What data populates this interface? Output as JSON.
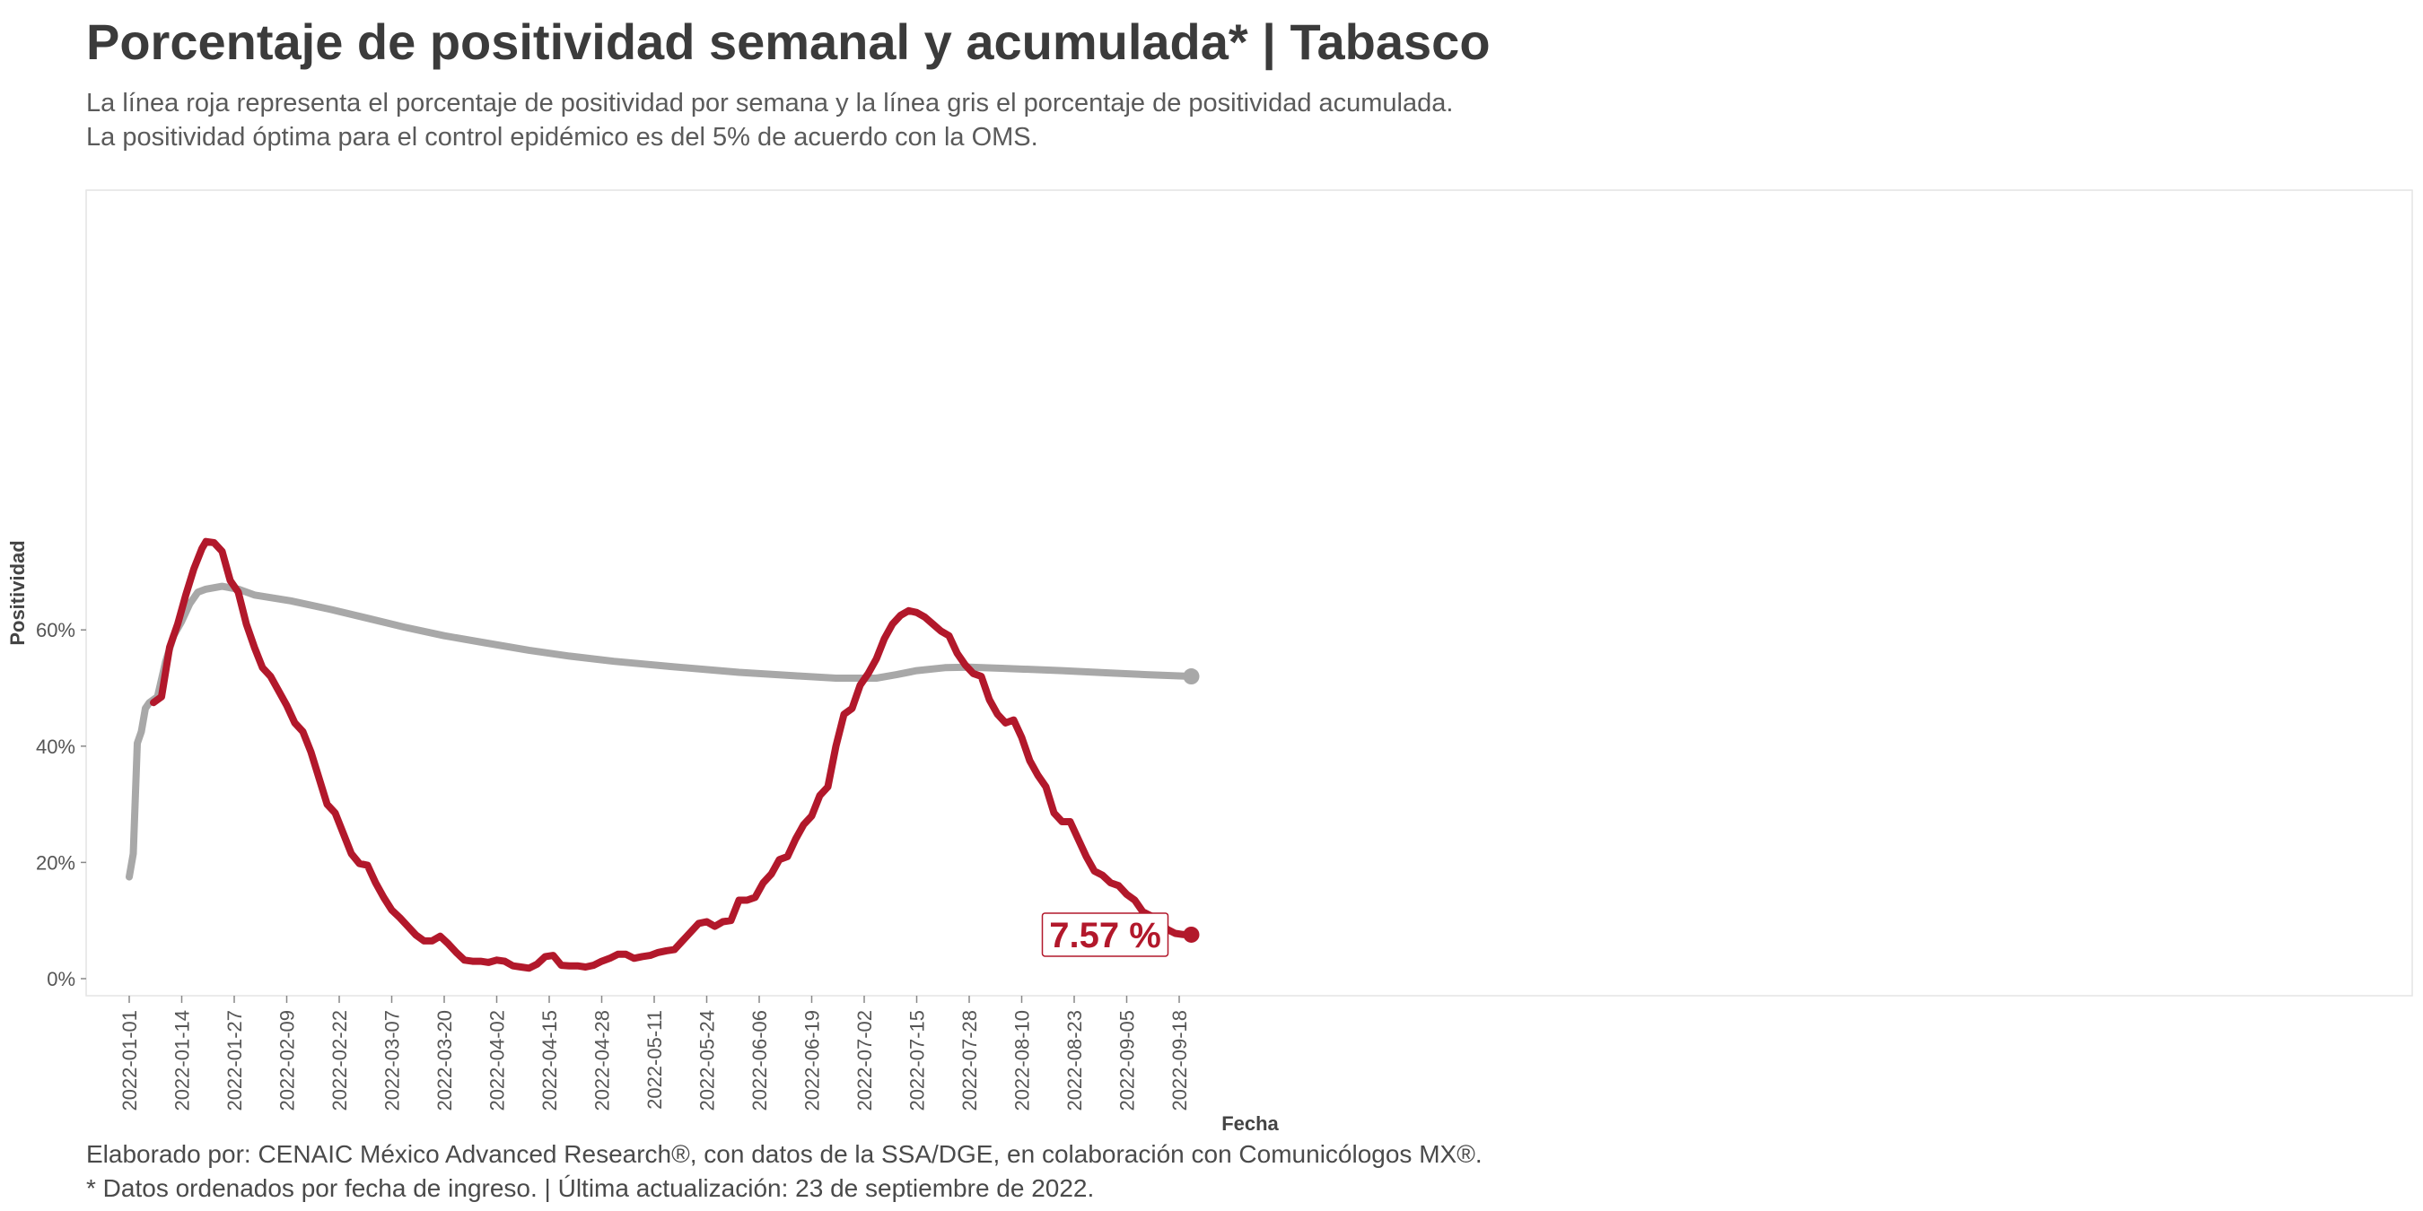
{
  "title": "Porcentaje de positividad semanal y acumulada* | Tabasco",
  "subtitle": [
    "La línea roja representa el porcentaje de positividad por semana y la línea gris el porcentaje de positividad acumulada.",
    "La positividad óptima para el control epidémico es del 5% de acuerdo con la OMS."
  ],
  "caption": [
    "Elaborado por: CENAIC México Advanced Research®, con datos de la SSA/DGE, en colaboración con Comunicólogos MX®.",
    "* Datos ordenados por fecha de ingreso. | Última actualización: 23 de septiembre de 2022."
  ],
  "chart_data": {
    "type": "line",
    "xlabel": "Fecha",
    "ylabel": "Positividad",
    "x_start": "2022-01-01",
    "x_ticks": [
      "2022-01-01",
      "2022-01-14",
      "2022-01-27",
      "2022-02-09",
      "2022-02-22",
      "2022-03-07",
      "2022-03-20",
      "2022-04-02",
      "2022-04-15",
      "2022-04-28",
      "2022-05-11",
      "2022-05-24",
      "2022-06-06",
      "2022-06-19",
      "2022-07-02",
      "2022-07-15",
      "2022-07-28",
      "2022-08-10",
      "2022-08-23",
      "2022-09-05",
      "2022-09-18"
    ],
    "y_ticks": [
      0,
      20,
      40,
      60
    ],
    "y_tick_labels": [
      "0%",
      "20%",
      "40%",
      "60%"
    ],
    "ylim": [
      -1.5,
      77
    ],
    "grid": false,
    "end_label": "7.57 %",
    "series": [
      {
        "color": "#b2182b",
        "points": [
          [
            "2022-01-07",
            47.5
          ],
          [
            "2022-01-09",
            48.5
          ],
          [
            "2022-01-11",
            57
          ],
          [
            "2022-01-13",
            61
          ],
          [
            "2022-01-15",
            66
          ],
          [
            "2022-01-17",
            70.5
          ],
          [
            "2022-01-19",
            74
          ],
          [
            "2022-01-20",
            75.2
          ],
          [
            "2022-01-22",
            75
          ],
          [
            "2022-01-24",
            73.5
          ],
          [
            "2022-01-26",
            68.5
          ],
          [
            "2022-01-28",
            66.5
          ],
          [
            "2022-01-30",
            61
          ],
          [
            "2022-02-01",
            57
          ],
          [
            "2022-02-03",
            53.5
          ],
          [
            "2022-02-05",
            52
          ],
          [
            "2022-02-07",
            49.5
          ],
          [
            "2022-02-09",
            47
          ],
          [
            "2022-02-11",
            44
          ],
          [
            "2022-02-13",
            42.5
          ],
          [
            "2022-02-15",
            39
          ],
          [
            "2022-02-17",
            34.5
          ],
          [
            "2022-02-19",
            30
          ],
          [
            "2022-02-21",
            28.5
          ],
          [
            "2022-02-23",
            25
          ],
          [
            "2022-02-25",
            21.5
          ],
          [
            "2022-02-27",
            19.8
          ],
          [
            "2022-03-01",
            19.5
          ],
          [
            "2022-03-03",
            16.5
          ],
          [
            "2022-03-05",
            14
          ],
          [
            "2022-03-07",
            11.8
          ],
          [
            "2022-03-09",
            10.5
          ],
          [
            "2022-03-11",
            9
          ],
          [
            "2022-03-13",
            7.5
          ],
          [
            "2022-03-15",
            6.5
          ],
          [
            "2022-03-17",
            6.5
          ],
          [
            "2022-03-19",
            7.3
          ],
          [
            "2022-03-21",
            6
          ],
          [
            "2022-03-23",
            4.5
          ],
          [
            "2022-03-25",
            3.2
          ],
          [
            "2022-03-27",
            3
          ],
          [
            "2022-03-29",
            3
          ],
          [
            "2022-03-31",
            2.8
          ],
          [
            "2022-04-02",
            3.2
          ],
          [
            "2022-04-04",
            3
          ],
          [
            "2022-04-06",
            2.2
          ],
          [
            "2022-04-08",
            2
          ],
          [
            "2022-04-10",
            1.8
          ],
          [
            "2022-04-12",
            2.5
          ],
          [
            "2022-04-14",
            3.8
          ],
          [
            "2022-04-16",
            4
          ],
          [
            "2022-04-18",
            2.3
          ],
          [
            "2022-04-20",
            2.2
          ],
          [
            "2022-04-22",
            2.2
          ],
          [
            "2022-04-24",
            2
          ],
          [
            "2022-04-26",
            2.3
          ],
          [
            "2022-04-28",
            3
          ],
          [
            "2022-04-30",
            3.5
          ],
          [
            "2022-05-02",
            4.2
          ],
          [
            "2022-05-04",
            4.2
          ],
          [
            "2022-05-06",
            3.5
          ],
          [
            "2022-05-08",
            3.8
          ],
          [
            "2022-05-10",
            4
          ],
          [
            "2022-05-12",
            4.5
          ],
          [
            "2022-05-14",
            4.8
          ],
          [
            "2022-05-16",
            5
          ],
          [
            "2022-05-18",
            6.5
          ],
          [
            "2022-05-20",
            8
          ],
          [
            "2022-05-22",
            9.5
          ],
          [
            "2022-05-24",
            9.8
          ],
          [
            "2022-05-26",
            9
          ],
          [
            "2022-05-28",
            9.8
          ],
          [
            "2022-05-30",
            10
          ],
          [
            "2022-06-01",
            13.5
          ],
          [
            "2022-06-03",
            13.5
          ],
          [
            "2022-06-05",
            14
          ],
          [
            "2022-06-07",
            16.5
          ],
          [
            "2022-06-09",
            18
          ],
          [
            "2022-06-11",
            20.5
          ],
          [
            "2022-06-13",
            21
          ],
          [
            "2022-06-15",
            24
          ],
          [
            "2022-06-17",
            26.5
          ],
          [
            "2022-06-19",
            28
          ],
          [
            "2022-06-21",
            31.5
          ],
          [
            "2022-06-23",
            33
          ],
          [
            "2022-06-25",
            40
          ],
          [
            "2022-06-27",
            45.5
          ],
          [
            "2022-06-29",
            46.5
          ],
          [
            "2022-07-01",
            50.5
          ],
          [
            "2022-07-03",
            52.5
          ],
          [
            "2022-07-05",
            55
          ],
          [
            "2022-07-07",
            58.5
          ],
          [
            "2022-07-09",
            61
          ],
          [
            "2022-07-11",
            62.5
          ],
          [
            "2022-07-13",
            63.3
          ],
          [
            "2022-07-15",
            63
          ],
          [
            "2022-07-17",
            62.2
          ],
          [
            "2022-07-19",
            61
          ],
          [
            "2022-07-21",
            59.8
          ],
          [
            "2022-07-23",
            59
          ],
          [
            "2022-07-25",
            56
          ],
          [
            "2022-07-27",
            54
          ],
          [
            "2022-07-29",
            52.5
          ],
          [
            "2022-07-31",
            52
          ],
          [
            "2022-08-02",
            48
          ],
          [
            "2022-08-04",
            45.5
          ],
          [
            "2022-08-06",
            44
          ],
          [
            "2022-08-08",
            44.5
          ],
          [
            "2022-08-10",
            41.5
          ],
          [
            "2022-08-12",
            37.5
          ],
          [
            "2022-08-14",
            35
          ],
          [
            "2022-08-16",
            33
          ],
          [
            "2022-08-18",
            28.5
          ],
          [
            "2022-08-20",
            27
          ],
          [
            "2022-08-22",
            27
          ],
          [
            "2022-08-24",
            24
          ],
          [
            "2022-08-26",
            21
          ],
          [
            "2022-08-28",
            18.5
          ],
          [
            "2022-08-30",
            17.8
          ],
          [
            "2022-09-01",
            16.5
          ],
          [
            "2022-09-03",
            16
          ],
          [
            "2022-09-05",
            14.5
          ],
          [
            "2022-09-07",
            13.5
          ],
          [
            "2022-09-09",
            11.5
          ],
          [
            "2022-09-11",
            10.8
          ],
          [
            "2022-09-13",
            10
          ],
          [
            "2022-09-15",
            8.5
          ],
          [
            "2022-09-17",
            7.8
          ],
          [
            "2022-09-19",
            7.6
          ],
          [
            "2022-09-21",
            7.57
          ]
        ]
      },
      {
        "color": "#a8a8a8",
        "points": [
          [
            "2022-01-01",
            17.5
          ],
          [
            "2022-01-02",
            21.5
          ],
          [
            "2022-01-03",
            40.5
          ],
          [
            "2022-01-04",
            42.5
          ],
          [
            "2022-01-05",
            46.5
          ],
          [
            "2022-01-06",
            47.5
          ],
          [
            "2022-01-08",
            48.5
          ],
          [
            "2022-01-10",
            54.5
          ],
          [
            "2022-01-12",
            59
          ],
          [
            "2022-01-14",
            61.5
          ],
          [
            "2022-01-16",
            64.5
          ],
          [
            "2022-01-18",
            66.5
          ],
          [
            "2022-01-20",
            67
          ],
          [
            "2022-01-24",
            67.5
          ],
          [
            "2022-01-28",
            67
          ],
          [
            "2022-02-01",
            66
          ],
          [
            "2022-02-10",
            65
          ],
          [
            "2022-02-20",
            63.5
          ],
          [
            "2022-03-01",
            62
          ],
          [
            "2022-03-10",
            60.5
          ],
          [
            "2022-03-20",
            59
          ],
          [
            "2022-03-30",
            57.8
          ],
          [
            "2022-04-10",
            56.5
          ],
          [
            "2022-04-20",
            55.5
          ],
          [
            "2022-05-01",
            54.6
          ],
          [
            "2022-05-15",
            53.7
          ],
          [
            "2022-06-01",
            52.7
          ],
          [
            "2022-06-15",
            52.1
          ],
          [
            "2022-06-25",
            51.7
          ],
          [
            "2022-07-05",
            51.7
          ],
          [
            "2022-07-10",
            52.3
          ],
          [
            "2022-07-15",
            53
          ],
          [
            "2022-07-22",
            53.5
          ],
          [
            "2022-07-28",
            53.6
          ],
          [
            "2022-08-05",
            53.4
          ],
          [
            "2022-08-20",
            53
          ],
          [
            "2022-09-01",
            52.6
          ],
          [
            "2022-09-10",
            52.3
          ],
          [
            "2022-09-21",
            52
          ]
        ]
      }
    ]
  }
}
